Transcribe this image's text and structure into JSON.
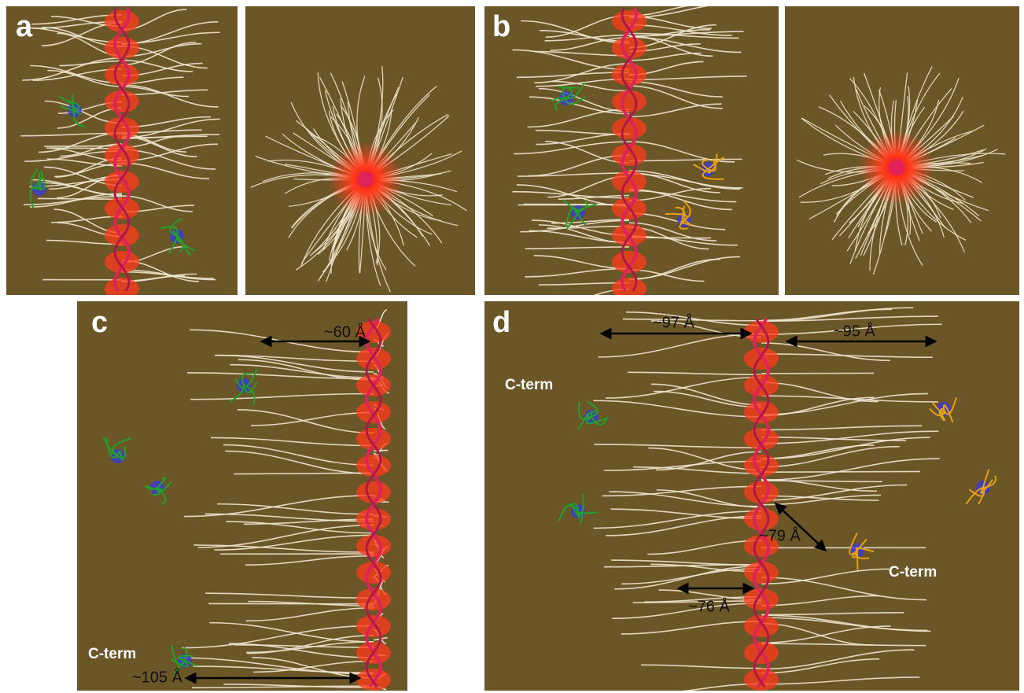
{
  "panels": [
    {
      "label": "a"
    },
    {
      "label": "b"
    },
    {
      "label": "c",
      "annotations": [
        "~60 Å",
        "C-term",
        "~105 Å"
      ]
    },
    {
      "label": "d",
      "annotations": [
        "C-term",
        "~97 Å",
        "~95 Å",
        "~79 Å",
        "~76 Å",
        "C-term"
      ]
    }
  ]
}
